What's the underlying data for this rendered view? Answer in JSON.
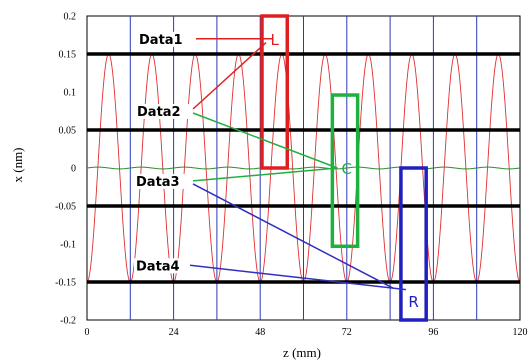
{
  "chart_data": {
    "type": "line",
    "xlabel": "z (mm)",
    "ylabel": "x (nm)",
    "xlim": [
      0,
      120
    ],
    "ylim": [
      -0.2,
      0.2
    ],
    "x_ticks": [
      "0",
      "24",
      "48",
      "72",
      "96",
      "120"
    ],
    "y_ticks": [
      "0.2",
      "0.15",
      "0.1",
      "0.05",
      "0",
      "-0.05",
      "-0.1",
      "-0.15",
      "-0.2"
    ],
    "grid": {
      "vertical_every": 12,
      "horizontal_levels": [
        0.15,
        0.05,
        -0.05,
        -0.15
      ]
    },
    "series": [
      {
        "color": "#e03030",
        "amplitude": 0.15,
        "period": 12,
        "phase_peak_at": 6
      },
      {
        "color": "#2e8b2e",
        "baseline": 0.0,
        "note": "near-flat trace"
      }
    ],
    "annotations": [
      {
        "label": "Data1",
        "y": 0.17,
        "connects_to": "L"
      },
      {
        "label": "Data2",
        "y": 0.075,
        "connects_to": "L"
      },
      {
        "label": "Data3",
        "y": -0.017,
        "connects_to": [
          "C",
          "R"
        ]
      },
      {
        "label": "Data4",
        "y": -0.128,
        "connects_to": "R"
      }
    ],
    "boxes": [
      {
        "label": "L",
        "color": "#e02020",
        "x_range": [
          48.5,
          55.5
        ],
        "y_range": [
          0.0,
          0.2
        ]
      },
      {
        "label": "C",
        "color": "#20b040",
        "x_range": [
          68,
          75
        ],
        "y_range": [
          -0.103,
          0.096
        ]
      },
      {
        "label": "R",
        "color": "#2020c0",
        "x_range": [
          87,
          94
        ],
        "y_range": [
          -0.2,
          0.0
        ]
      }
    ]
  },
  "colors": {
    "sine": "#e03030",
    "green_trace": "#2e8b2e",
    "box_L": "#e02020",
    "box_C": "#20b040",
    "box_R": "#2020c0",
    "leader_red": "#e02020",
    "leader_green": "#20b040",
    "leader_blue": "#3030c0"
  }
}
